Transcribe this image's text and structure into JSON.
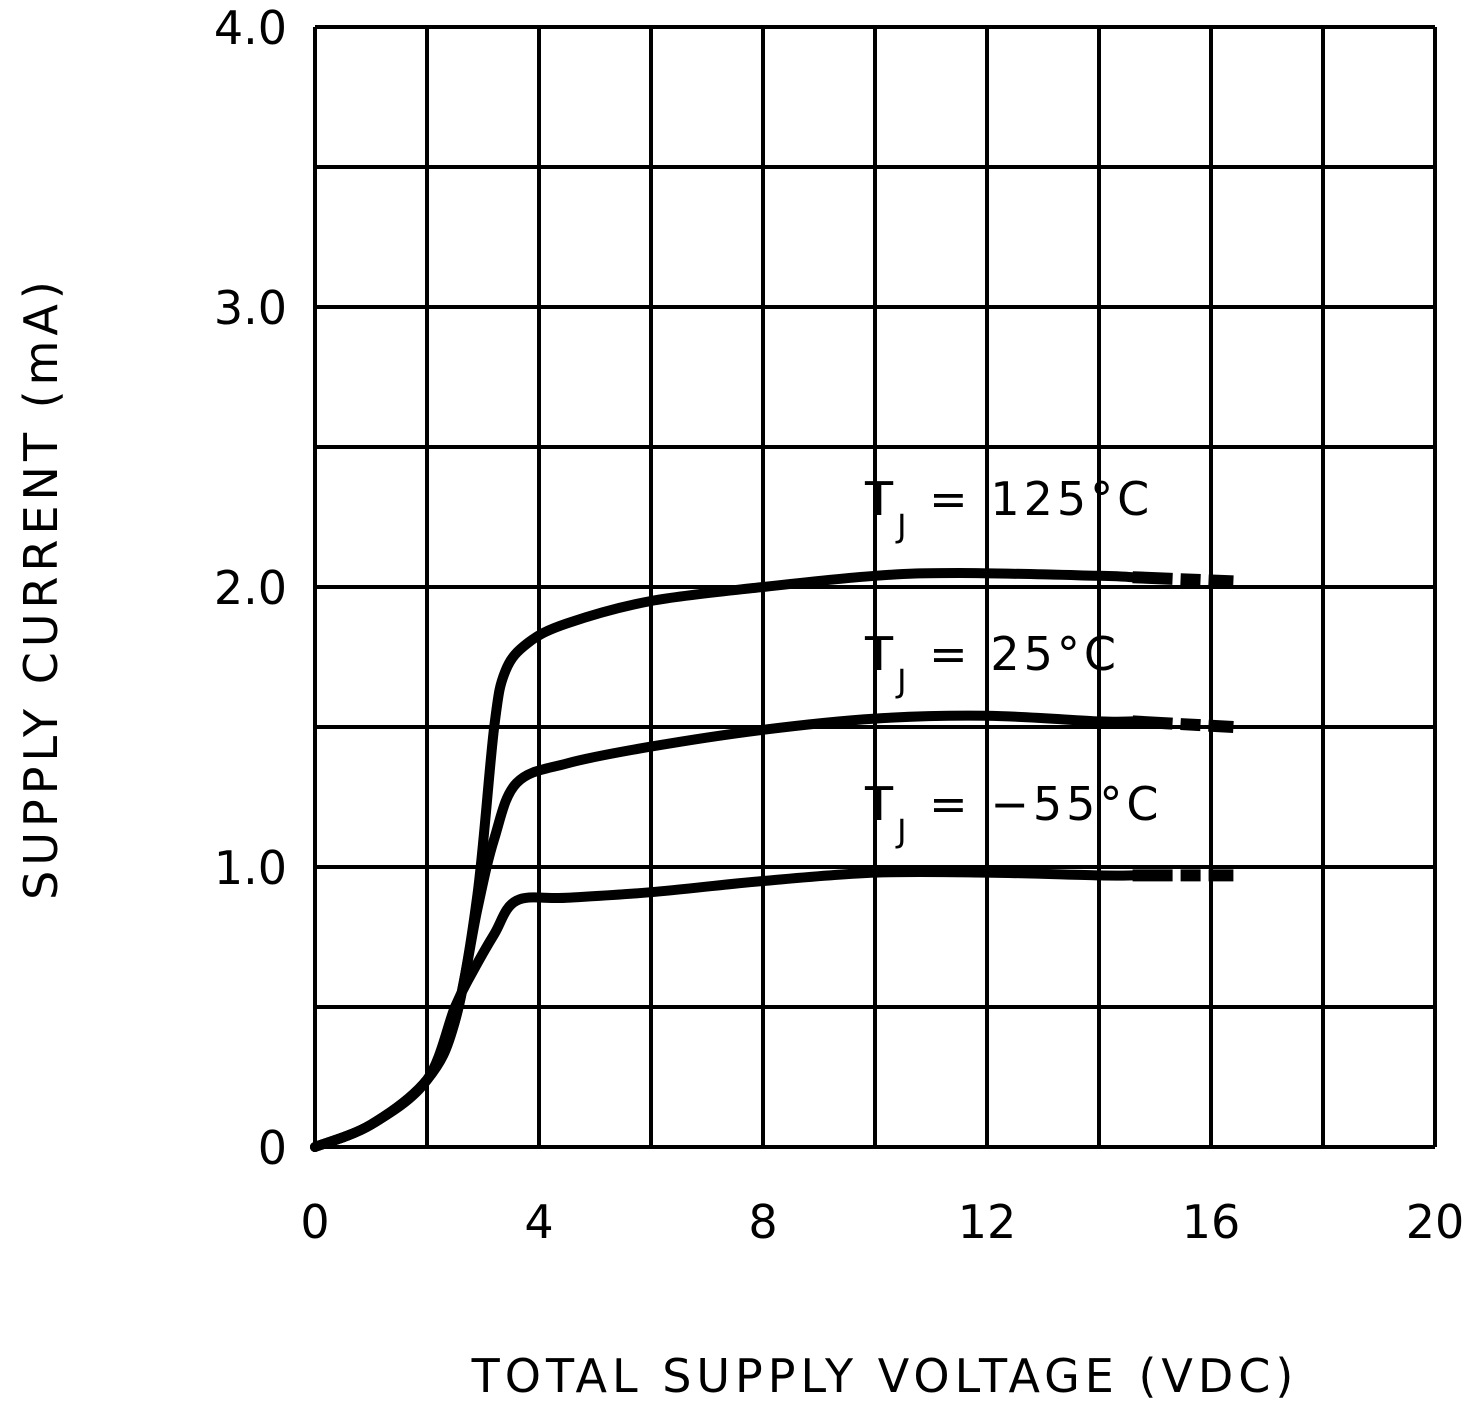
{
  "chart_data": {
    "type": "line",
    "title": "",
    "xlabel": "TOTAL SUPPLY VOLTAGE (VDC)",
    "ylabel": "SUPPLY CURRENT (mA)",
    "xlim": [
      0,
      20
    ],
    "ylim": [
      0,
      4.0
    ],
    "grid": true,
    "x_ticks": [
      "0",
      "4",
      "8",
      "12",
      "16",
      "20"
    ],
    "y_ticks": [
      "0",
      "1.0",
      "2.0",
      "3.0",
      "4.0"
    ],
    "line_color": "#000000",
    "series": [
      {
        "name": "TJ = 125°C",
        "label": {
          "main": "T",
          "sub": "J",
          "rest": " = 125°C"
        },
        "points": [
          [
            0,
            0
          ],
          [
            1,
            0.08
          ],
          [
            2,
            0.24
          ],
          [
            2.5,
            0.45
          ],
          [
            2.9,
            0.9
          ],
          [
            3.2,
            1.5
          ],
          [
            3.4,
            1.7
          ],
          [
            3.8,
            1.8
          ],
          [
            4.5,
            1.87
          ],
          [
            6,
            1.95
          ],
          [
            8,
            2.0
          ],
          [
            10,
            2.04
          ],
          [
            11.5,
            2.05
          ],
          [
            14,
            2.04
          ],
          [
            14.6,
            2.035
          ]
        ],
        "dashed_extension": [
          [
            14.6,
            2.035
          ],
          [
            16.4,
            2.02
          ]
        ]
      },
      {
        "name": "TJ = 25°C",
        "label": {
          "main": "T",
          "sub": "J",
          "rest": " = 25°C"
        },
        "points": [
          [
            0,
            0
          ],
          [
            1,
            0.08
          ],
          [
            2,
            0.24
          ],
          [
            2.5,
            0.45
          ],
          [
            2.9,
            0.85
          ],
          [
            3.2,
            1.1
          ],
          [
            3.6,
            1.3
          ],
          [
            4.5,
            1.37
          ],
          [
            6,
            1.43
          ],
          [
            8,
            1.49
          ],
          [
            10,
            1.53
          ],
          [
            12,
            1.54
          ],
          [
            14,
            1.52
          ],
          [
            14.6,
            1.52
          ]
        ],
        "dashed_extension": [
          [
            14.6,
            1.52
          ],
          [
            16.4,
            1.5
          ]
        ]
      },
      {
        "name": "TJ = -55°C",
        "label": {
          "main": "T",
          "sub": "J",
          "rest": " = −55°C"
        },
        "points": [
          [
            0,
            0
          ],
          [
            1,
            0.08
          ],
          [
            2,
            0.24
          ],
          [
            2.5,
            0.5
          ],
          [
            2.8,
            0.62
          ],
          [
            3.2,
            0.76
          ],
          [
            3.6,
            0.88
          ],
          [
            4.5,
            0.89
          ],
          [
            6,
            0.91
          ],
          [
            8,
            0.95
          ],
          [
            10,
            0.98
          ],
          [
            12,
            0.98
          ],
          [
            14,
            0.97
          ],
          [
            14.6,
            0.97
          ]
        ],
        "dashed_extension": [
          [
            14.6,
            0.97
          ],
          [
            16.4,
            0.97
          ]
        ]
      }
    ]
  }
}
